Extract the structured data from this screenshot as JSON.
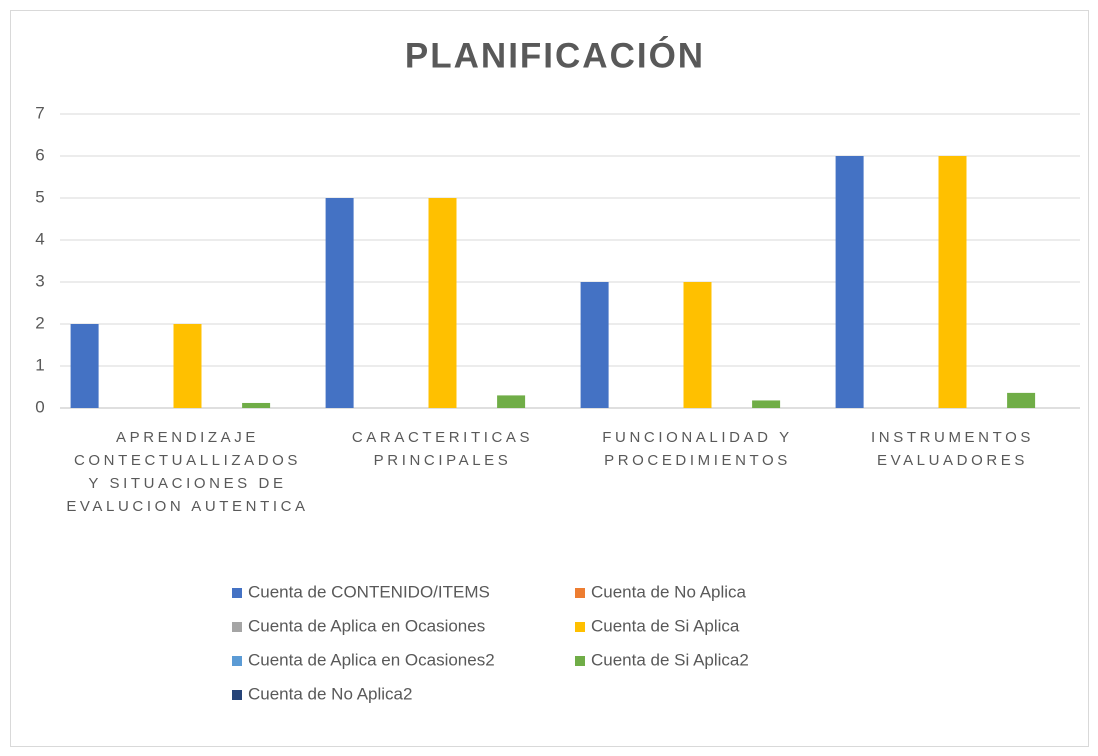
{
  "chart_data": {
    "type": "bar",
    "title": "PLANIFICACIÓN",
    "categories": [
      "APRENDIZAJE CONTECTUALLIZADOS Y SITUACIONES DE EVALUCION AUTENTICA",
      "CARACTERITICAS PRINCIPALES",
      "FUNCIONALIDAD Y PROCEDIMIENTOS",
      "INSTRUMENTOS EVALUADORES"
    ],
    "series": [
      {
        "name": "Cuenta de CONTENIDO/ITEMS",
        "color": "#4472c4",
        "values": [
          2,
          5,
          3,
          6
        ]
      },
      {
        "name": "Cuenta de No Aplica",
        "color": "#ed7d31",
        "values": [
          0,
          0,
          0,
          0
        ]
      },
      {
        "name": "Cuenta de Aplica en Ocasiones",
        "color": "#a5a5a5",
        "values": [
          0,
          0,
          0,
          0
        ]
      },
      {
        "name": "Cuenta de Si Aplica",
        "color": "#ffc000",
        "values": [
          2,
          5,
          3,
          6
        ]
      },
      {
        "name": "Cuenta de Aplica en Ocasiones2",
        "color": "#5b9bd5",
        "values": [
          0,
          0,
          0,
          0
        ]
      },
      {
        "name": "Cuenta de Si Aplica2",
        "color": "#70ad47",
        "values": [
          0.12,
          0.3,
          0.18,
          0.36
        ]
      },
      {
        "name": "Cuenta de No Aplica2",
        "color": "#264478",
        "values": [
          0,
          0,
          0,
          0
        ]
      }
    ],
    "ylim": [
      0,
      7
    ],
    "yticks": [
      0,
      1,
      2,
      3,
      4,
      5,
      6,
      7
    ],
    "grid": true,
    "legend": "bottom"
  }
}
